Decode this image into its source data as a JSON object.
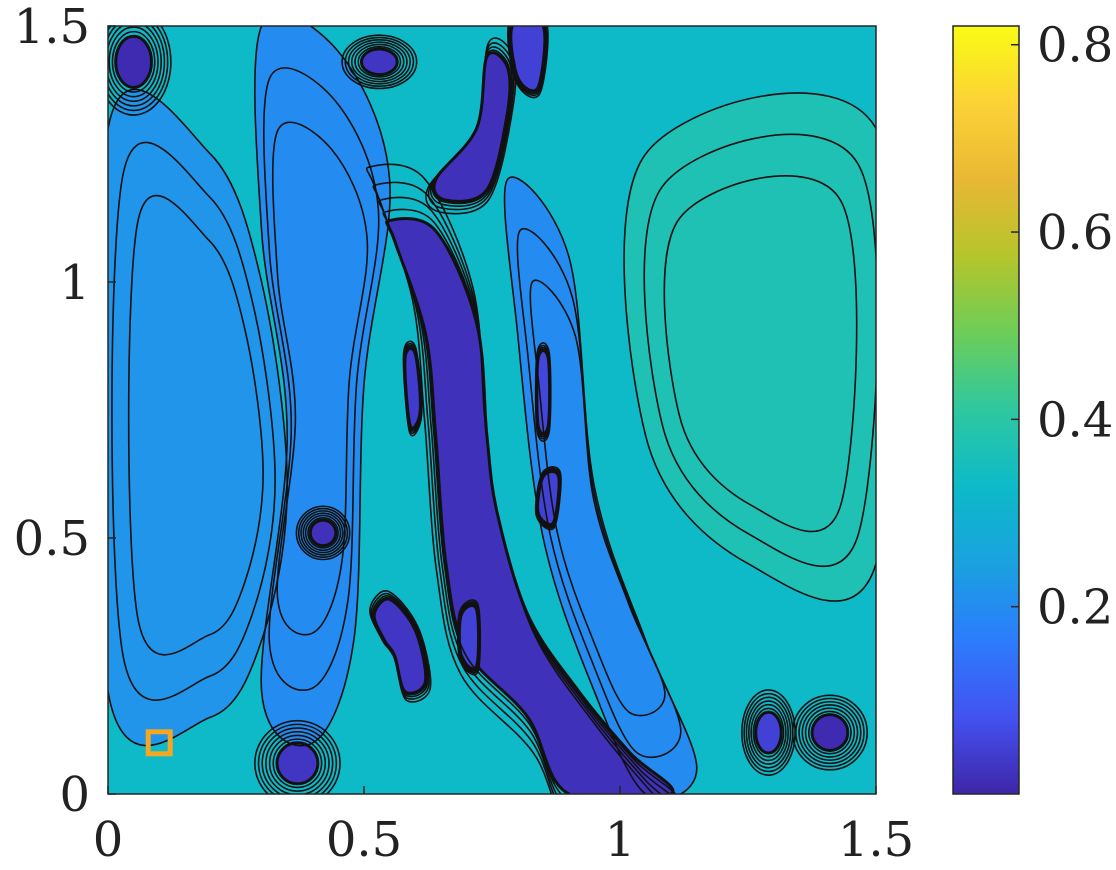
{
  "chart_data": {
    "type": "heatmap",
    "title": "",
    "xlabel": "",
    "ylabel": "",
    "xlim": [
      0,
      1.5
    ],
    "ylim": [
      0,
      1.5
    ],
    "x_ticks": [
      {
        "value": 0,
        "label": "0"
      },
      {
        "value": 0.5,
        "label": "0.5"
      },
      {
        "value": 1,
        "label": "1"
      },
      {
        "value": 1.5,
        "label": "1.5"
      }
    ],
    "y_ticks": [
      {
        "value": 0,
        "label": "0"
      },
      {
        "value": 0.5,
        "label": "0.5"
      },
      {
        "value": 1,
        "label": "1"
      },
      {
        "value": 1.5,
        "label": "1.5"
      }
    ],
    "colorbar": {
      "colormap": "parula",
      "range": [
        0.0,
        0.82
      ],
      "ticks": [
        {
          "value": 0.2,
          "label": "0.2"
        },
        {
          "value": 0.4,
          "label": "0.4"
        },
        {
          "value": 0.6,
          "label": "0.6"
        },
        {
          "value": 0.8,
          "label": "0.8"
        }
      ],
      "stops": [
        "#3e26a8",
        "#4352f1",
        "#2c7cfd",
        "#1aa1df",
        "#0dbac8",
        "#2ec8a0",
        "#6dcd59",
        "#b5c52a",
        "#e9b834",
        "#fcd236",
        "#f9fb15"
      ]
    },
    "background_value": 0.33,
    "low_regions": [
      {
        "name": "main-channel",
        "value": 0.02,
        "points": [
          [
            0.55,
            1.12
          ],
          [
            0.64,
            1.1
          ],
          [
            0.72,
            0.92
          ],
          [
            0.74,
            0.7
          ],
          [
            0.76,
            0.55
          ],
          [
            0.82,
            0.35
          ],
          [
            0.92,
            0.2
          ],
          [
            1.02,
            0.08
          ],
          [
            1.1,
            0.0
          ],
          [
            0.9,
            0.0
          ],
          [
            0.82,
            0.15
          ],
          [
            0.7,
            0.28
          ],
          [
            0.66,
            0.45
          ],
          [
            0.64,
            0.7
          ],
          [
            0.62,
            0.9
          ],
          [
            0.56,
            1.08
          ]
        ]
      },
      {
        "name": "upper-channel",
        "value": 0.02,
        "points": [
          [
            0.66,
            1.16
          ],
          [
            0.74,
            1.18
          ],
          [
            0.78,
            1.33
          ],
          [
            0.78,
            1.42
          ],
          [
            0.74,
            1.44
          ],
          [
            0.72,
            1.3
          ],
          [
            0.64,
            1.2
          ]
        ]
      },
      {
        "name": "top-strip",
        "value": 0.05,
        "points": [
          [
            0.79,
            1.5
          ],
          [
            0.85,
            1.5
          ],
          [
            0.84,
            1.38
          ],
          [
            0.8,
            1.4
          ]
        ]
      },
      {
        "name": "left-branch",
        "value": 0.03,
        "points": [
          [
            0.52,
            0.35
          ],
          [
            0.55,
            0.38
          ],
          [
            0.6,
            0.32
          ],
          [
            0.62,
            0.22
          ],
          [
            0.58,
            0.2
          ],
          [
            0.56,
            0.27
          ],
          [
            0.54,
            0.3
          ]
        ]
      },
      {
        "name": "left-vein",
        "value": 0.04,
        "points": [
          [
            0.58,
            0.85
          ],
          [
            0.6,
            0.86
          ],
          [
            0.61,
            0.75
          ],
          [
            0.59,
            0.72
          ]
        ]
      },
      {
        "name": "mid-spot",
        "value": 0.06,
        "points": [
          [
            0.84,
            0.85
          ],
          [
            0.86,
            0.85
          ],
          [
            0.86,
            0.72
          ],
          [
            0.84,
            0.72
          ]
        ]
      },
      {
        "name": "lower-mid-spot",
        "value": 0.05,
        "points": [
          [
            0.85,
            0.62
          ],
          [
            0.88,
            0.62
          ],
          [
            0.87,
            0.53
          ],
          [
            0.84,
            0.55
          ]
        ]
      },
      {
        "name": "right-branch-spot",
        "value": 0.05,
        "points": [
          [
            0.69,
            0.35
          ],
          [
            0.72,
            0.36
          ],
          [
            0.72,
            0.25
          ],
          [
            0.69,
            0.27
          ]
        ]
      }
    ],
    "low_blobs": [
      {
        "name": "top-left-well",
        "x": 0.05,
        "y": 1.43,
        "rx": 0.035,
        "ry": 0.05,
        "value": 0.01
      },
      {
        "name": "top-center-well",
        "x": 0.53,
        "y": 1.43,
        "rx": 0.035,
        "ry": 0.025,
        "value": 0.03
      },
      {
        "name": "left-mid-well",
        "x": 0.42,
        "y": 0.51,
        "rx": 0.025,
        "ry": 0.025,
        "value": 0.02
      },
      {
        "name": "bottom-left-well",
        "x": 0.37,
        "y": 0.06,
        "rx": 0.04,
        "ry": 0.04,
        "value": 0.03
      },
      {
        "name": "bottom-right-well",
        "x": 1.41,
        "y": 0.12,
        "rx": 0.035,
        "ry": 0.035,
        "value": 0.01
      },
      {
        "name": "bottom-right-well-2",
        "x": 1.29,
        "y": 0.12,
        "rx": 0.025,
        "ry": 0.04,
        "value": 0.05
      }
    ],
    "mid_regions": [
      {
        "name": "left-band",
        "value": 0.22,
        "points": [
          [
            0.0,
            1.3
          ],
          [
            0.2,
            1.25
          ],
          [
            0.3,
            1.0
          ],
          [
            0.35,
            0.6
          ],
          [
            0.3,
            0.3
          ],
          [
            0.2,
            0.15
          ],
          [
            0.0,
            0.2
          ]
        ]
      },
      {
        "name": "center-left-band",
        "value": 0.2,
        "points": [
          [
            0.3,
            1.5
          ],
          [
            0.45,
            1.45
          ],
          [
            0.55,
            1.2
          ],
          [
            0.5,
            0.8
          ],
          [
            0.48,
            0.3
          ],
          [
            0.4,
            0.1
          ],
          [
            0.3,
            0.2
          ],
          [
            0.35,
            0.7
          ],
          [
            0.3,
            1.1
          ]
        ]
      },
      {
        "name": "center-right-band",
        "value": 0.2,
        "points": [
          [
            0.78,
            1.2
          ],
          [
            0.9,
            1.05
          ],
          [
            0.95,
            0.6
          ],
          [
            1.05,
            0.3
          ],
          [
            1.15,
            0.05
          ],
          [
            1.05,
            0.0
          ],
          [
            0.95,
            0.2
          ],
          [
            0.85,
            0.5
          ],
          [
            0.8,
            0.9
          ]
        ]
      },
      {
        "name": "right-basin",
        "value": 0.37,
        "points": [
          [
            1.05,
            1.25
          ],
          [
            1.5,
            1.3
          ],
          [
            1.5,
            0.45
          ],
          [
            1.25,
            0.45
          ],
          [
            1.05,
            0.7
          ]
        ]
      }
    ],
    "marker": {
      "x": 0.1,
      "y": 0.1,
      "shape": "square",
      "color": "#f5a623"
    }
  }
}
